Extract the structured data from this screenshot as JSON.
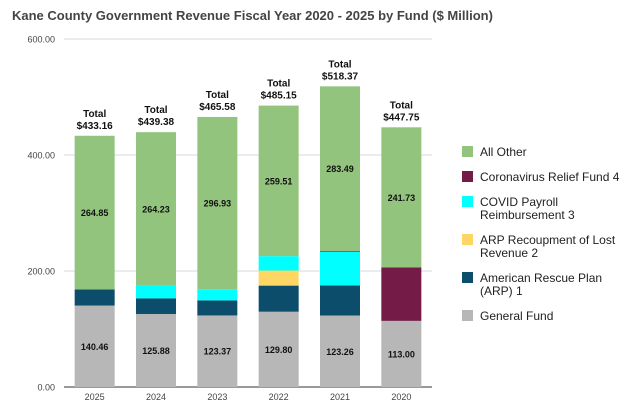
{
  "chart_data": {
    "type": "bar",
    "stacked": true,
    "title": "Kane County Government Revenue Fiscal Year 2020 - 2025 by Fund ($ Million)",
    "xlabel": "",
    "ylabel": "",
    "ylim": [
      0,
      600
    ],
    "yticks": [
      "0.00",
      "200.00",
      "400.00",
      "600.00"
    ],
    "ytick_values": [
      0,
      200,
      400,
      600
    ],
    "grid": true,
    "legend_position": "right",
    "categories": [
      "2025",
      "2024",
      "2023",
      "2022",
      "2021",
      "2020"
    ],
    "totals": [
      "Total\n$433.16",
      "Total\n$439.38",
      "Total\n$465.58",
      "Total\n$485.15",
      "Total\n$518.37",
      "Total\n$447.75"
    ],
    "total_values": [
      433.16,
      439.38,
      465.58,
      485.15,
      518.37,
      447.75
    ],
    "series": [
      {
        "name": "General Fund",
        "color": "#b7b7b7",
        "values": [
          140.46,
          125.88,
          123.37,
          129.8,
          123.26,
          113.0
        ],
        "labels": [
          "140.46",
          "125.88",
          "123.37",
          "129.80",
          "123.26",
          "113.00"
        ]
      },
      {
        "name": "American Rescue Plan (ARP) 1",
        "color": "#0b4d6b",
        "values": [
          27.85,
          27.0,
          26.0,
          45.0,
          52.0,
          0
        ],
        "labels": [
          "",
          "",
          "",
          "",
          "",
          ""
        ]
      },
      {
        "name": "ARP Recoupment of Lost Revenue 2",
        "color": "#fdd663",
        "values": [
          0,
          0,
          0,
          26.0,
          0,
          0
        ],
        "labels": [
          "",
          "",
          "",
          "",
          "",
          ""
        ]
      },
      {
        "name": "COVID Payroll Reimbursement 3",
        "color": "#00ffff",
        "values": [
          0,
          22.27,
          19.28,
          24.84,
          58.12,
          1.0
        ],
        "labels": [
          "",
          "",
          "",
          "",
          "",
          ""
        ]
      },
      {
        "name": "Coronavirus Relief Fund 4",
        "color": "#741b47",
        "values": [
          0,
          0,
          0,
          0,
          1.5,
          92.02
        ],
        "labels": [
          "",
          "",
          "",
          "",
          "",
          ""
        ]
      },
      {
        "name": "All Other",
        "color": "#93c47d",
        "values": [
          264.85,
          264.23,
          296.93,
          259.51,
          283.49,
          241.73
        ],
        "labels": [
          "264.85",
          "264.23",
          "296.93",
          "259.51",
          "283.49",
          "241.73"
        ]
      }
    ],
    "legend": [
      {
        "label": "All Other",
        "color": "#93c47d"
      },
      {
        "label": "Coronavirus Relief Fund 4",
        "color": "#741b47"
      },
      {
        "label": "COVID Payroll Reimbursement 3",
        "color": "#00ffff"
      },
      {
        "label": "ARP Recoupment of Lost Revenue 2",
        "color": "#fdd663"
      },
      {
        "label": "American Rescue Plan (ARP) 1",
        "color": "#0b4d6b"
      },
      {
        "label": "General Fund",
        "color": "#b7b7b7"
      }
    ]
  }
}
